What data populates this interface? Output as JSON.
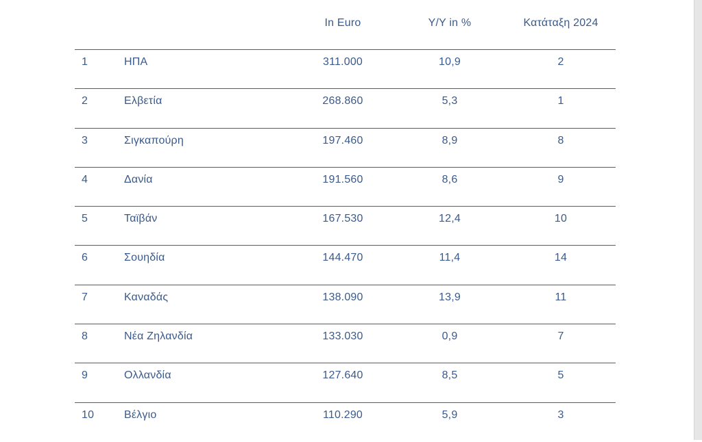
{
  "table": {
    "headers": {
      "rank": "",
      "country": "",
      "euro": "In Euro",
      "yy": "Y/Y in %",
      "rank2024": "Κατάταξη 2024"
    },
    "rows": [
      {
        "rank": "1",
        "country": "ΗΠΑ",
        "euro": "311.000",
        "yy": "10,9",
        "rank2024": "2"
      },
      {
        "rank": "2",
        "country": "Ελβετία",
        "euro": "268.860",
        "yy": "5,3",
        "rank2024": "1"
      },
      {
        "rank": "3",
        "country": "Σιγκαπούρη",
        "euro": "197.460",
        "yy": "8,9",
        "rank2024": "8"
      },
      {
        "rank": "4",
        "country": "Δανία",
        "euro": "191.560",
        "yy": "8,6",
        "rank2024": "9"
      },
      {
        "rank": "5",
        "country": "Ταϊβάν",
        "euro": "167.530",
        "yy": "12,4",
        "rank2024": "10"
      },
      {
        "rank": "6",
        "country": "Σουηδία",
        "euro": "144.470",
        "yy": "11,4",
        "rank2024": "14"
      },
      {
        "rank": "7",
        "country": "Καναδάς",
        "euro": "138.090",
        "yy": "13,9",
        "rank2024": "11"
      },
      {
        "rank": "8",
        "country": "Νέα Ζηλανδία",
        "euro": "133.030",
        "yy": "0,9",
        "rank2024": "7"
      },
      {
        "rank": "9",
        "country": "Ολλανδία",
        "euro": "127.640",
        "yy": "8,5",
        "rank2024": "5"
      },
      {
        "rank": "10",
        "country": "Βέλγιο",
        "euro": "110.290",
        "yy": "5,9",
        "rank2024": "3"
      }
    ]
  }
}
